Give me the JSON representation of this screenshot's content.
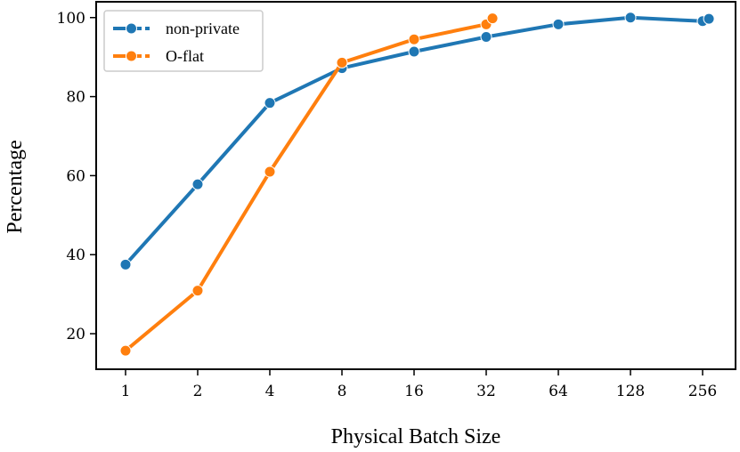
{
  "chart_data": {
    "type": "line",
    "title": "",
    "xlabel": "Physical Batch Size",
    "ylabel": "Percentage",
    "categories": [
      "1",
      "2",
      "4",
      "8",
      "16",
      "32",
      "64",
      "128",
      "256"
    ],
    "ylim": [
      11,
      104
    ],
    "yticks": [
      20,
      40,
      60,
      80,
      100
    ],
    "grid": false,
    "legend_position": "top-left",
    "series": [
      {
        "name": "non-private",
        "color": "#1f77b4",
        "points": [
          {
            "x": 1,
            "y": 37.5
          },
          {
            "x": 2,
            "y": 57.8
          },
          {
            "x": 4,
            "y": 78.4
          },
          {
            "x": 8,
            "y": 87.2
          },
          {
            "x": 16,
            "y": 91.4
          },
          {
            "x": 32,
            "y": 95.1
          },
          {
            "x": 64,
            "y": 98.3
          },
          {
            "x": 128,
            "y": 100.0
          },
          {
            "x": 256,
            "y": 99.1
          },
          {
            "x": 272,
            "y": 99.7
          }
        ]
      },
      {
        "name": "O-flat",
        "color": "#ff7f0e",
        "points": [
          {
            "x": 1,
            "y": 15.7
          },
          {
            "x": 2,
            "y": 30.9
          },
          {
            "x": 4,
            "y": 61.0
          },
          {
            "x": 8,
            "y": 88.6
          },
          {
            "x": 16,
            "y": 94.5
          },
          {
            "x": 32,
            "y": 98.3
          },
          {
            "x": 34,
            "y": 99.8
          }
        ]
      }
    ]
  }
}
